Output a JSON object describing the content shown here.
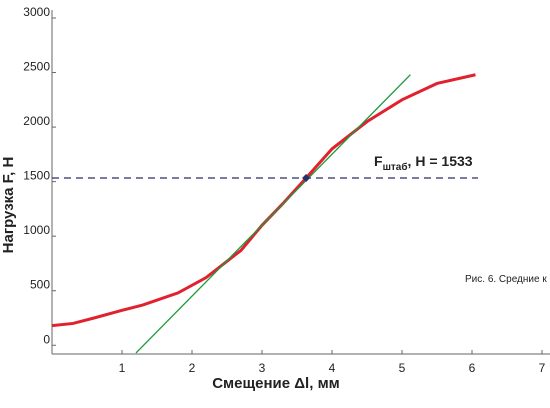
{
  "chart_data": {
    "type": "line",
    "xlabel": "Смещение Δl, мм",
    "ylabel": "Нагрузка F, H",
    "xlim": [
      0,
      7
    ],
    "xticks": [
      1,
      2,
      3,
      4,
      5,
      6,
      7
    ],
    "ylim": [
      -80,
      3000
    ],
    "yticks": [
      0,
      500,
      1000,
      1500,
      2000,
      2500,
      3000
    ],
    "series": [
      {
        "color": "#e0222e",
        "x": [
          0,
          0.3,
          0.6,
          1,
          1.3,
          1.8,
          2.2,
          2.7,
          3,
          3.3,
          3.63,
          4,
          4.5,
          5,
          5.5,
          6.05
        ],
        "values": [
          180,
          200,
          250,
          320,
          370,
          480,
          620,
          870,
          1100,
          1300,
          1533,
          1800,
          2050,
          2250,
          2400,
          2480
        ]
      },
      {
        "color": "#1a9a3a",
        "x": [
          1.2,
          5.12
        ],
        "values": [
          -70,
          2480
        ]
      }
    ],
    "threshold": {
      "x": 3.63,
      "value": 1533,
      "color": "#2a2f6e"
    },
    "annotation": {
      "main": "F",
      "sub": "штаб",
      "rest": ", H =  "
    },
    "caption": "Рис. 6. Средние к"
  }
}
